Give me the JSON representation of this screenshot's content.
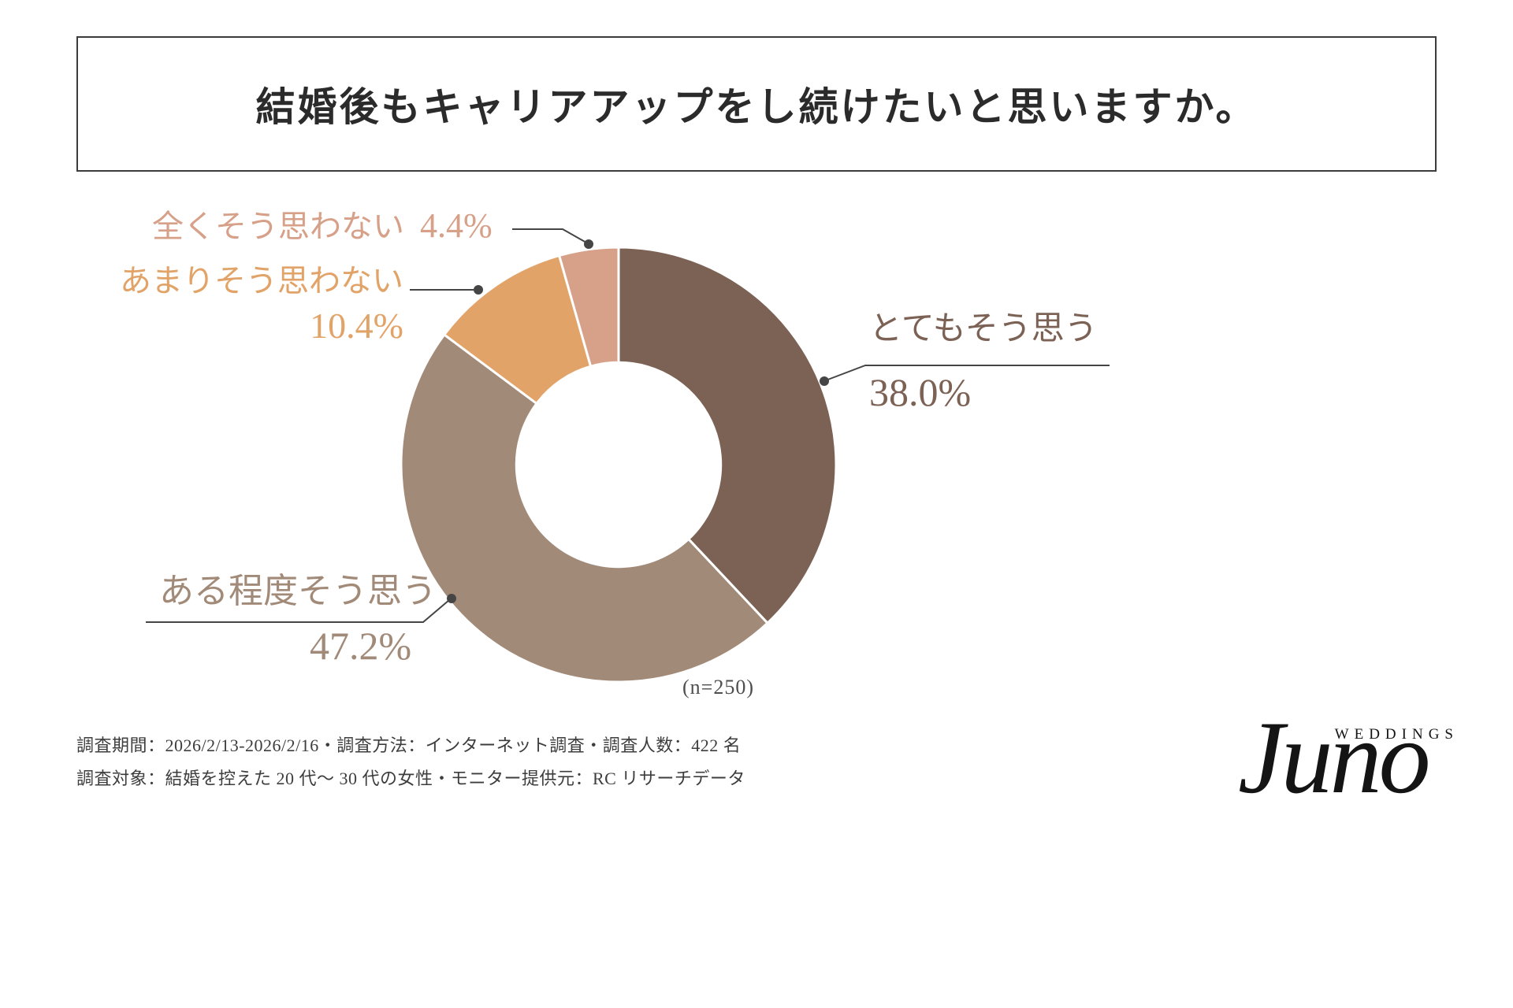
{
  "title": "結婚後もキャリアアップをし続けたいと思いますか。",
  "chart_data": {
    "type": "pie",
    "subtype": "donut",
    "title": "結婚後もキャリアアップをし続けたいと思いますか。",
    "n_label": "(n=250)",
    "start_angle_deg": 0,
    "direction": "clockwise",
    "donut_hole_ratio": 0.47,
    "background": "#ffffff",
    "leader_line_color": "#454545",
    "segments": [
      {
        "label": "とてもそう思う",
        "value": 38.0,
        "pct_label": "38.0%",
        "color": "#7c6255"
      },
      {
        "label": "ある程度そう思う",
        "value": 47.2,
        "pct_label": "47.2%",
        "color": "#a28a79"
      },
      {
        "label": "あまりそう思わない",
        "value": 10.4,
        "pct_label": "10.4%",
        "color": "#e2a368"
      },
      {
        "label": "全くそう思わない",
        "value": 4.4,
        "pct_label": "4.4%",
        "color": "#d7a089"
      }
    ]
  },
  "footer": {
    "line1": "調査期間：2026/2/13-2026/2/16・調査方法：インターネット調査・調査人数：422 名",
    "line2": "調査対象：結婚を控えた 20 代～ 30 代の女性・モニター提供元：RC リサーチデータ"
  },
  "logo": {
    "brand": "Juno",
    "sub": "WEDDINGS"
  }
}
